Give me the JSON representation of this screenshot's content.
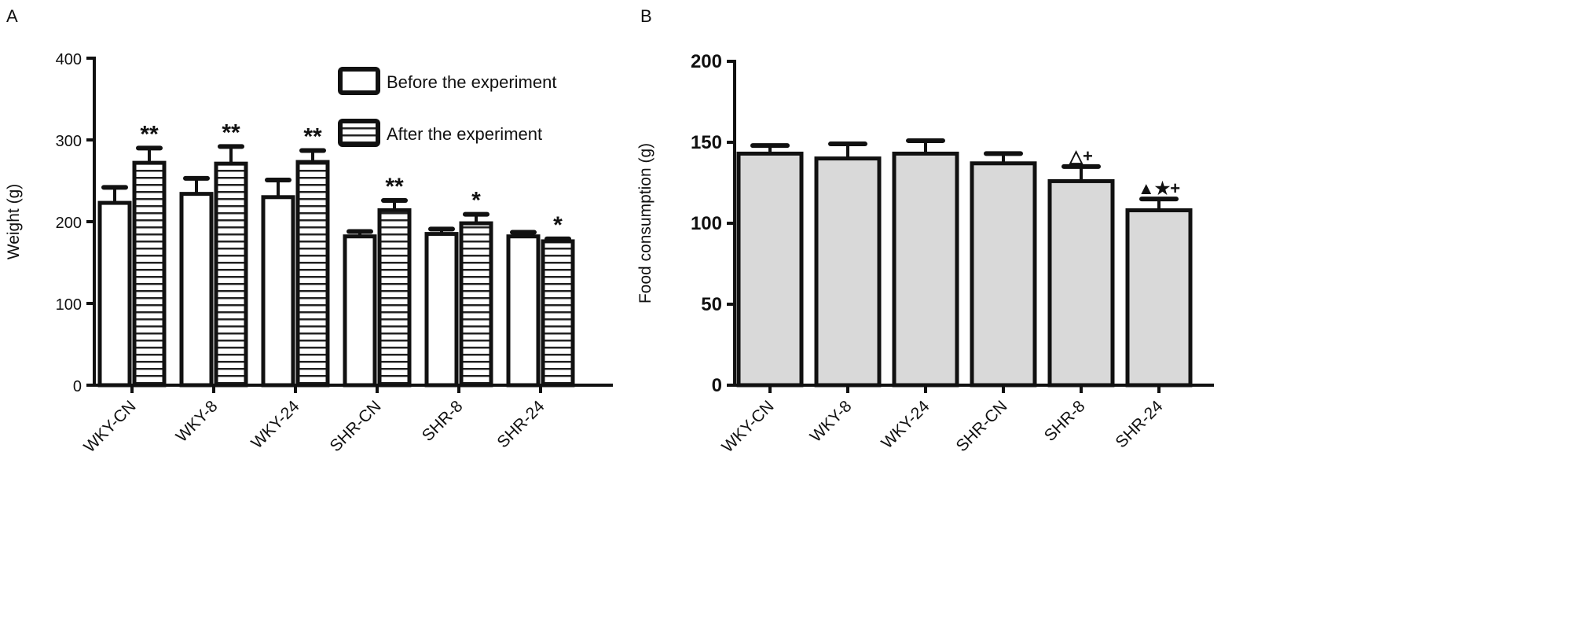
{
  "chart_data": [
    {
      "panel_label": "A",
      "type": "bar",
      "ylabel": "Weight (g)",
      "ylim": [
        0,
        400
      ],
      "yticks": [
        "0",
        "100",
        "200",
        "300",
        "400"
      ],
      "categories": [
        "WKY-CN",
        "WKY-8",
        "WKY-24",
        "SHR-CN",
        "SHR-8",
        "SHR-24"
      ],
      "legend": {
        "placement": "top-right",
        "entries": [
          "Before the experiment",
          "After the experiment"
        ]
      },
      "series": [
        {
          "name": "Before the experiment",
          "pattern": "white",
          "values": [
            223,
            234,
            230,
            182,
            185,
            182
          ],
          "errors": [
            19,
            19,
            21,
            6,
            6,
            5
          ]
        },
        {
          "name": "After the experiment",
          "pattern": "horizontal-stripes",
          "values": [
            272,
            271,
            273,
            214,
            198,
            176
          ],
          "errors": [
            18,
            21,
            14,
            12,
            11,
            3
          ]
        }
      ],
      "annotations": [
        "**",
        "**",
        "**",
        "**",
        "*",
        "*"
      ]
    },
    {
      "panel_label": "B",
      "type": "bar",
      "ylabel": "Food consumption (g)",
      "ylim": [
        0,
        200
      ],
      "yticks": [
        "0",
        "50",
        "100",
        "150",
        "200"
      ],
      "categories": [
        "WKY-CN",
        "WKY-8",
        "WKY-24",
        "SHR-CN",
        "SHR-8",
        "SHR-24"
      ],
      "series": [
        {
          "name": "Food consumption",
          "values": [
            143,
            140,
            143,
            137,
            126,
            108
          ],
          "errors": [
            5,
            9,
            8,
            6,
            9,
            7
          ]
        }
      ],
      "bar_color": "#d9d9d9",
      "annotations": [
        "",
        "",
        "",
        "",
        "△+",
        "▲★+"
      ]
    }
  ]
}
